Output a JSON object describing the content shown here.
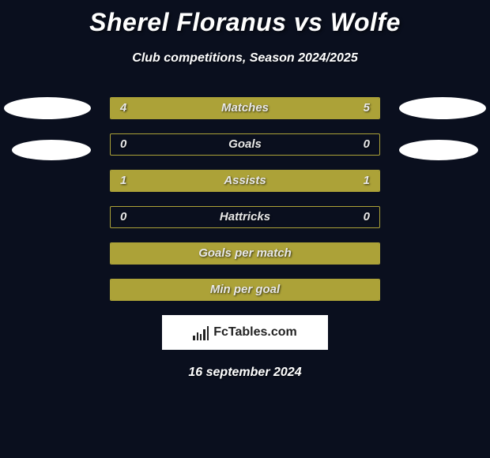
{
  "title": "Sherel Floranus vs Wolfe",
  "subtitle": "Club competitions, Season 2024/2025",
  "date": "16 september 2024",
  "branding": "FcTables.com",
  "colors": {
    "background": "#0a0f1e",
    "bar_fill": "#aca238",
    "bar_border": "#aca238",
    "text": "#ffffff",
    "ellipse": "#ffffff",
    "branding_bg": "#ffffff",
    "branding_text": "#222222"
  },
  "bars": [
    {
      "label": "Matches",
      "left_value": "4",
      "right_value": "5",
      "left_fill_pct": 44,
      "right_fill_pct": 56,
      "full_fill": false,
      "show_values": true
    },
    {
      "label": "Goals",
      "left_value": "0",
      "right_value": "0",
      "left_fill_pct": 0,
      "right_fill_pct": 0,
      "full_fill": false,
      "show_values": true
    },
    {
      "label": "Assists",
      "left_value": "1",
      "right_value": "1",
      "left_fill_pct": 50,
      "right_fill_pct": 50,
      "full_fill": false,
      "show_values": true
    },
    {
      "label": "Hattricks",
      "left_value": "0",
      "right_value": "0",
      "left_fill_pct": 0,
      "right_fill_pct": 0,
      "full_fill": false,
      "show_values": true
    },
    {
      "label": "Goals per match",
      "left_value": "",
      "right_value": "",
      "left_fill_pct": 0,
      "right_fill_pct": 0,
      "full_fill": true,
      "show_values": false
    },
    {
      "label": "Min per goal",
      "left_value": "",
      "right_value": "",
      "left_fill_pct": 0,
      "right_fill_pct": 0,
      "full_fill": true,
      "show_values": false
    }
  ]
}
